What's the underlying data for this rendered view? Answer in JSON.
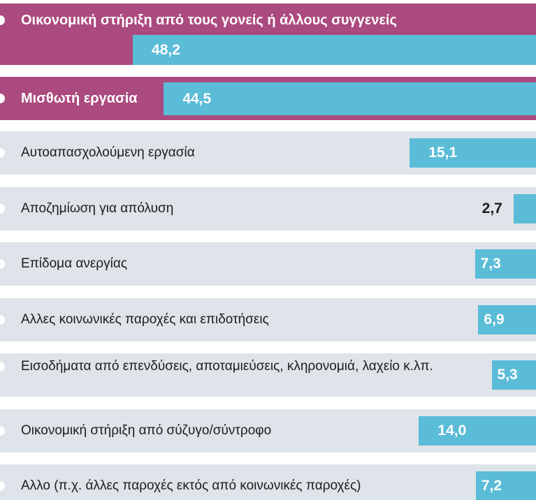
{
  "chart_data": {
    "type": "bar",
    "orientation": "horizontal",
    "categories": [
      "Οικονομική στήριξη από τους γονείς ή άλλους συγγενείς",
      "Μισθωτή εργασία",
      "Αυτοαπασχολούμενη εργασία",
      "Αποζημίωση για απόλυση",
      "Επίδομα ανεργίας",
      "Αλλες κοινωνικές παροχές και επιδοτήσεις",
      "Εισοδήματα από επενδύσεις, αποταμιεύσεις, κληρονομιά, λαχείο κ.λπ.",
      "Οικονομική στήριξη από σύζυγο/σύντροφο",
      "Αλλο (π.χ. άλλες παροχές εκτός από κοινωνικές παροχές)"
    ],
    "values": [
      48.2,
      44.5,
      15.1,
      2.7,
      7.3,
      6.9,
      5.3,
      14.0,
      7.2
    ],
    "value_labels": [
      "48,2",
      "44,5",
      "15,1",
      "2,7",
      "7,3",
      "6,9",
      "5,3",
      "14,0",
      "7,2"
    ],
    "color": "#5bbcd8",
    "highlight_color": "#ab4a7e",
    "background_color": "#dfe4ea",
    "highlight": [
      0,
      1
    ]
  }
}
